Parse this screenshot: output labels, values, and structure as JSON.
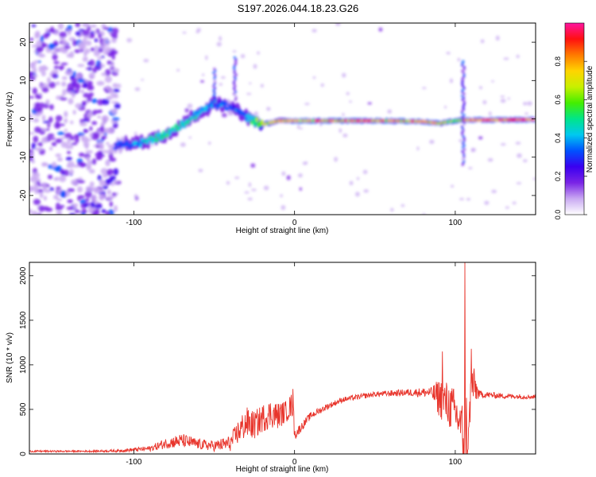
{
  "title": "S197.2026.044.18.23.G26",
  "colors": {
    "snr_line": "#e8352c",
    "axis": "#000000",
    "background": "#ffffff"
  },
  "chart_data": [
    {
      "type": "heatmap",
      "title": "S197.2026.044.18.23.G26",
      "xlabel": "Height of straight line (km)",
      "ylabel": "Frequency (Hz)",
      "xlim": [
        -165,
        150
      ],
      "ylim": [
        -25,
        25
      ],
      "xticks": [
        -100,
        0,
        100
      ],
      "xtick_labels": [
        "-100",
        "0",
        "100"
      ],
      "yticks": [
        -20,
        -10,
        0,
        10,
        20
      ],
      "ytick_labels": [
        "-20",
        "-10",
        "0",
        "10",
        "20"
      ],
      "colorbar": {
        "label": "Normalized spectral amplitude",
        "range": [
          0,
          1
        ],
        "ticks": [
          0,
          0.2,
          0.4,
          0.6,
          0.8
        ],
        "tick_labels": [
          "0.0",
          "0.2",
          "0.4",
          "0.6",
          "0.8"
        ],
        "colormap": [
          "#ffffff",
          "#c9a9f2",
          "#7a24e6",
          "#3a00f0",
          "#0052ff",
          "#00c8f0",
          "#00e58a",
          "#44ee00",
          "#c8f000",
          "#ffd400",
          "#ff7a00",
          "#ff1010",
          "#ff14a0"
        ]
      },
      "ridge_x": [
        -112,
        -100,
        -90,
        -80,
        -70,
        -60,
        -50,
        -40,
        -30,
        -25,
        -20,
        -10,
        0,
        20,
        40,
        60,
        80,
        90,
        95,
        100,
        105,
        120,
        150
      ],
      "ridge_freq": [
        -7,
        -6.5,
        -5.5,
        -4,
        -1.5,
        1.5,
        4,
        3,
        0.5,
        -0.5,
        -1.5,
        -0.5,
        -0.5,
        -0.5,
        -0.5,
        -0.5,
        -0.7,
        -1.2,
        -0.8,
        -0.5,
        -0.3,
        -0.3,
        -0.2
      ],
      "ridge_amplitude": [
        0.3,
        0.4,
        0.5,
        0.55,
        0.5,
        0.45,
        0.4,
        0.35,
        0.4,
        0.6,
        0.75,
        0.8,
        0.85,
        0.9,
        0.92,
        0.9,
        0.88,
        0.85,
        0.7,
        0.6,
        0.85,
        0.95,
        0.95
      ],
      "noise_region_x": [
        -165,
        -110
      ],
      "noise_freq_range": [
        -25,
        25
      ],
      "noise_amplitude": [
        0.05,
        0.35
      ],
      "spurs": [
        {
          "x": 105,
          "freq_range": [
            -12,
            15
          ]
        },
        {
          "x": -50,
          "freq_range": [
            3,
            13
          ]
        },
        {
          "x": -37,
          "freq_range": [
            5,
            16
          ]
        }
      ]
    },
    {
      "type": "line",
      "xlabel": "Height of straight line (km)",
      "ylabel": "SNR (10 * v/v)",
      "xlim": [
        -165,
        150
      ],
      "ylim": [
        0,
        2150
      ],
      "xticks": [
        -100,
        0,
        100
      ],
      "xtick_labels": [
        "-100",
        "0",
        "100"
      ],
      "yticks": [
        0,
        500,
        1000,
        1500,
        2000
      ],
      "ytick_labels": [
        "0",
        "500",
        "1000",
        "1500",
        "2000"
      ],
      "series": [
        {
          "name": "SNR",
          "x": [
            -165,
            -130,
            -110,
            -90,
            -80,
            -70,
            -60,
            -50,
            -40,
            -35,
            -30,
            -25,
            -20,
            -15,
            -10,
            -5,
            -1,
            0,
            10,
            20,
            30,
            50,
            70,
            85,
            90,
            95,
            100,
            104,
            106,
            108,
            110,
            115,
            130,
            150
          ],
          "values": [
            30,
            30,
            35,
            60,
            120,
            150,
            110,
            90,
            120,
            250,
            350,
            320,
            400,
            450,
            430,
            480,
            560,
            210,
            430,
            530,
            610,
            670,
            690,
            690,
            630,
            560,
            470,
            300,
            150,
            120,
            800,
            670,
            650,
            640
          ],
          "noise": [
            10,
            10,
            15,
            30,
            60,
            80,
            60,
            60,
            90,
            140,
            180,
            160,
            160,
            160,
            150,
            120,
            150,
            60,
            40,
            35,
            30,
            30,
            40,
            60,
            220,
            260,
            260,
            220,
            1200,
            120,
            300,
            40,
            30,
            25
          ],
          "spikes": [
            {
              "x": 106,
              "value": 2150
            },
            {
              "x": 110,
              "value": 1180
            },
            {
              "x": 92,
              "value": 1150
            },
            {
              "x": -1,
              "value": 730
            }
          ]
        }
      ]
    }
  ]
}
